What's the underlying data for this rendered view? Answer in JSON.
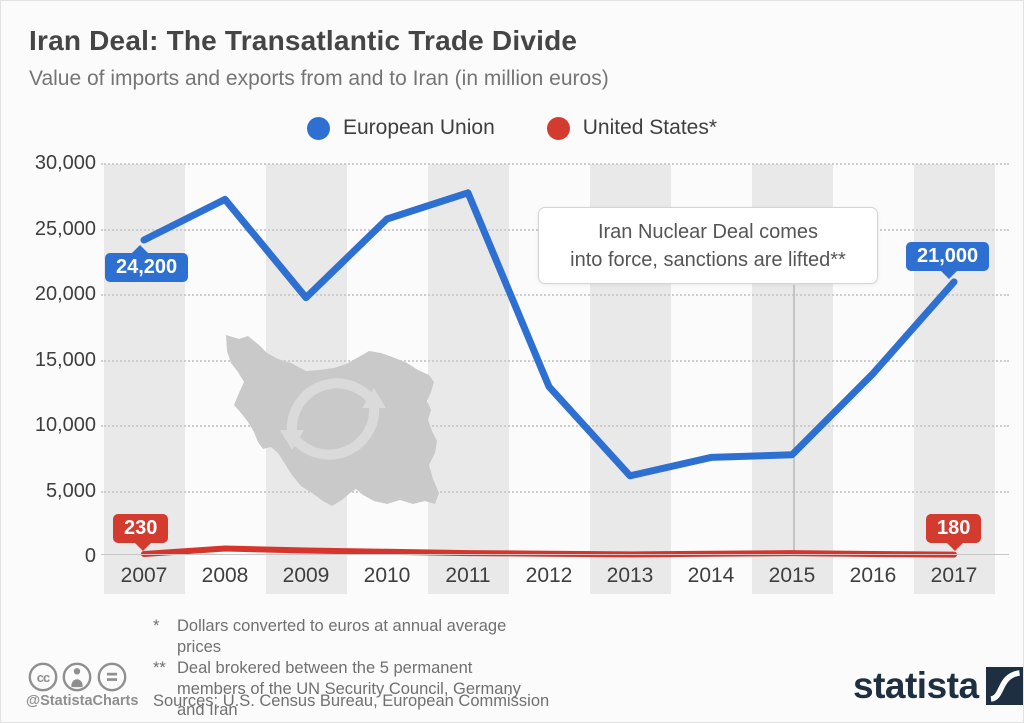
{
  "header": {
    "title": "Iran Deal: The Transatlantic Trade Divide",
    "subtitle": "Value of imports and exports from and to Iran (in million euros)"
  },
  "legend": {
    "items": [
      {
        "label": "European Union",
        "color": "#2e70d1"
      },
      {
        "label": "United States*",
        "color": "#d23b2e"
      }
    ]
  },
  "chart_data": {
    "type": "line",
    "title": "Iran Deal: The Transatlantic Trade Divide",
    "subtitle": "Value of imports and exports from and to Iran (in million euros)",
    "unit": "million euros",
    "categories": [
      2007,
      2008,
      2009,
      2010,
      2011,
      2012,
      2013,
      2014,
      2015,
      2016,
      2017
    ],
    "series": [
      {
        "name": "European Union",
        "color": "#2e70d1",
        "values": [
          24200,
          27300,
          19800,
          25800,
          27800,
          13000,
          6200,
          7600,
          7800,
          14000,
          21000
        ]
      },
      {
        "name": "United States",
        "color": "#d6352b",
        "values": [
          230,
          650,
          500,
          400,
          300,
          250,
          200,
          250,
          300,
          230,
          180
        ]
      }
    ],
    "ylim": [
      0,
      30000
    ],
    "yticks": {
      "values": [
        30000,
        25000,
        20000,
        15000,
        10000,
        5000,
        0
      ],
      "labels": [
        "30,000",
        "25,000",
        "20,000",
        "15,000",
        "10,000",
        "5,000",
        "0"
      ]
    },
    "grid": "horizontal-dotted",
    "legend_position": "top-center",
    "annotation": {
      "lines": [
        "Iran Nuclear Deal comes",
        "into force, sanctions are lifted**"
      ],
      "connector_year": 2015
    }
  },
  "callouts": {
    "eu_first": "24,200",
    "eu_last": "21,000",
    "us_first": "230",
    "us_last": "180"
  },
  "footnotes": {
    "note1_marker": "*",
    "note1": "Dollars converted to euros at annual average prices",
    "note2_marker": "**",
    "note2": "Deal brokered between the 5 permanent members of the UN Security Council, Germany and Iran",
    "sources": "Sources: U.S. Census Bureau, European Commission"
  },
  "credits": {
    "handle": "@StatistaCharts",
    "license_icons": [
      "cc",
      "attribution",
      "no-derivatives"
    ],
    "logo_text": "statista"
  }
}
